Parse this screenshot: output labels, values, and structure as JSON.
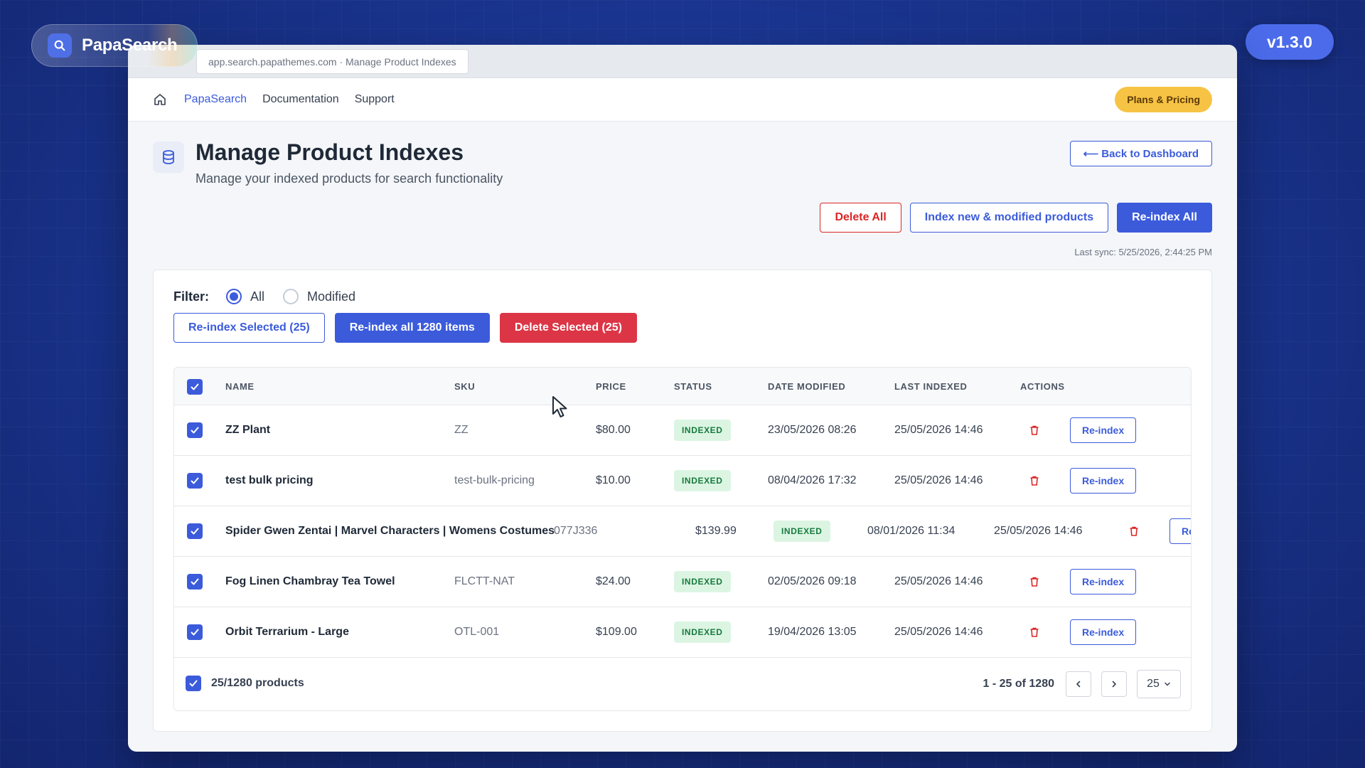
{
  "brand": {
    "name": "PapaSearch",
    "icon": "search-icon"
  },
  "version": "v1.3.0",
  "browser": {
    "url_text": "app.search.papathemes.com · Manage Product Indexes"
  },
  "nav": {
    "home_icon": "home-icon",
    "links": [
      "PapaSearch",
      "Documentation",
      "Support"
    ],
    "plans_label": "Plans & Pricing"
  },
  "header": {
    "icon": "database-icon",
    "title": "Manage Product Indexes",
    "subtitle": "Manage your indexed products for search functionality",
    "back_label": "⟵ Back to Dashboard",
    "actions": {
      "delete_all": "Delete All",
      "index_new": "Index new & modified products",
      "reindex_all": "Re-index All"
    },
    "last_sync": "Last sync: 5/25/2026, 2:44:25 PM"
  },
  "filter": {
    "label": "Filter:",
    "options": [
      "All",
      "Modified"
    ],
    "selected": "All"
  },
  "bulk": {
    "reindex_selected": "Re-index Selected (25)",
    "reindex_all_items": "Re-index all 1280 items",
    "delete_selected": "Delete Selected (25)"
  },
  "table": {
    "columns": [
      "NAME",
      "SKU",
      "PRICE",
      "STATUS",
      "DATE MODIFIED",
      "LAST INDEXED",
      "ACTIONS"
    ],
    "rows": [
      {
        "name": "ZZ Plant",
        "sku": "ZZ",
        "price": "$80.00",
        "status": "INDEXED",
        "modified": "23/05/2026 08:26",
        "indexed": "25/05/2026 14:46",
        "action": "Re-index"
      },
      {
        "name": "test bulk pricing",
        "sku": "test-bulk-pricing",
        "price": "$10.00",
        "status": "INDEXED",
        "modified": "08/04/2026 17:32",
        "indexed": "25/05/2026 14:46",
        "action": "Re-index"
      },
      {
        "name": "Spider Gwen Zentai | Marvel Characters | Womens Costumes",
        "sku": "077J336",
        "price": "$139.99",
        "status": "INDEXED",
        "modified": "08/01/2026 11:34",
        "indexed": "25/05/2026 14:46",
        "action": "Re-in"
      },
      {
        "name": "Fog Linen Chambray Tea Towel",
        "sku": "FLCTT-NAT",
        "price": "$24.00",
        "status": "INDEXED",
        "modified": "02/05/2026 09:18",
        "indexed": "25/05/2026 14:46",
        "action": "Re-index"
      },
      {
        "name": "Orbit Terrarium - Large",
        "sku": "OTL-001",
        "price": "$109.00",
        "status": "INDEXED",
        "modified": "19/04/2026 13:05",
        "indexed": "25/05/2026 14:46",
        "action": "Re-index"
      }
    ],
    "footer": {
      "count": "25/1280 products",
      "range": "1 - 25 of 1280",
      "per_page": "25"
    }
  },
  "colors": {
    "primary": "#3b5bdb",
    "danger": "#dc3545",
    "success_bg": "#dcf5e3",
    "success_text": "#177a3d",
    "accent": "#f6c344"
  }
}
